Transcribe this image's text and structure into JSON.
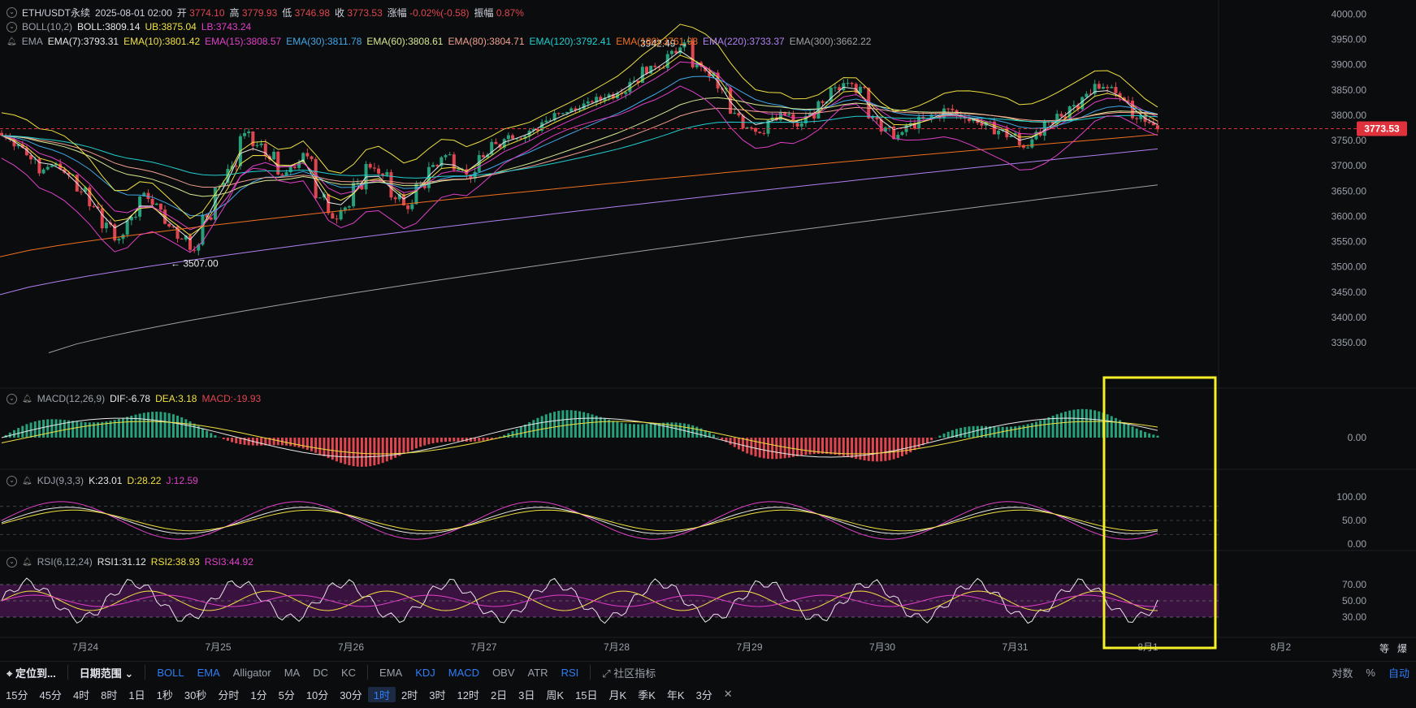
{
  "header": {
    "symbol": "ETH/USDT永续",
    "datetime": "2025-08-01 02:00",
    "open_label": "开",
    "open": "3774.10",
    "high_label": "高",
    "high": "3779.93",
    "low_label": "低",
    "low": "3746.98",
    "close_label": "收",
    "close": "3773.53",
    "change_label": "涨幅",
    "change": "-0.02%(-0.58)",
    "amp_label": "振幅",
    "amp": "0.87%"
  },
  "boll_legend": {
    "name": "BOLL(10,2)",
    "mid": "BOLL:3809.14",
    "ub": "UB:3875.04",
    "lb": "LB:3743.24"
  },
  "ema_legend": {
    "name": "EMA",
    "items": [
      {
        "text": "EMA(7):3793.31",
        "color": "#e8e8e8"
      },
      {
        "text": "EMA(10):3801.42",
        "color": "#f0e040"
      },
      {
        "text": "EMA(15):3808.57",
        "color": "#e040c8"
      },
      {
        "text": "EMA(30):3811.78",
        "color": "#40a8e8"
      },
      {
        "text": "EMA(60):3808.61",
        "color": "#d8e890"
      },
      {
        "text": "EMA(80):3804.71",
        "color": "#f0a090"
      },
      {
        "text": "EMA(120):3792.41",
        "color": "#20d0d0"
      },
      {
        "text": "EMA(180):3761.98",
        "color": "#f07020"
      },
      {
        "text": "EMA(220):3733.37",
        "color": "#b080f0"
      },
      {
        "text": "EMA(300):3662.22",
        "color": "#a0a0a0"
      }
    ]
  },
  "macd_legend": {
    "name": "MACD(12,26,9)",
    "dif": "DIF:-6.78",
    "dea": "DEA:3.18",
    "macd": "MACD:-19.93"
  },
  "kdj_legend": {
    "name": "KDJ(9,3,3)",
    "k": "K:23.01",
    "d": "D:28.22",
    "j": "J:12.59"
  },
  "rsi_legend": {
    "name": "RSI(6,12,24)",
    "r1": "RSI1:31.12",
    "r2": "RSI2:38.93",
    "r3": "RSI3:44.92"
  },
  "colors": {
    "up": "#26a17b",
    "down": "#e0464f",
    "bg": "#0b0c0e",
    "highlight": "#f5f028",
    "price_tag": "#e0323c"
  },
  "chart_data": {
    "type": "candlestick",
    "price_axis": {
      "ticks": [
        4000,
        3950,
        3900,
        3850,
        3800,
        3750,
        3700,
        3650,
        3600,
        3550,
        3500,
        3450,
        3400,
        3350
      ],
      "labels": [
        "4000.00",
        "3950.00",
        "3900.00",
        "3850.00",
        "3800.00",
        "3750.00",
        "3700.00",
        "3650.00",
        "3600.00",
        "3550.00",
        "3500.00",
        "3450.00",
        "3400.00",
        "3350.00"
      ],
      "ylim": [
        3318,
        4012
      ]
    },
    "last_price": {
      "value": 3773.53,
      "label": "3773.53"
    },
    "annotations": [
      {
        "text": "3942.49 →",
        "price": 3942.49,
        "x_date": "7月28 ~17:00"
      },
      {
        "text": "← 3507.00",
        "price": 3507.0,
        "x_date": "7月24 ~18:00"
      }
    ],
    "x_axis": {
      "labels": [
        "7月24",
        "7月25",
        "7月26",
        "7月27",
        "7月28",
        "7月29",
        "7月30",
        "7月31",
        "8月1",
        "8月2"
      ]
    },
    "key_closes": {
      "dates_hourly_from": "7月23 ~13:00",
      "approx_closes": [
        3760,
        3740,
        3720,
        3690,
        3700,
        3680,
        3650,
        3620,
        3580,
        3560,
        3600,
        3640,
        3620,
        3580,
        3560,
        3540,
        3600,
        3660,
        3700,
        3760,
        3740,
        3720,
        3680,
        3700,
        3720,
        3640,
        3600,
        3620,
        3660,
        3700,
        3680,
        3640,
        3620,
        3660,
        3700,
        3720,
        3700,
        3680,
        3720,
        3740,
        3760,
        3760,
        3770,
        3790,
        3800,
        3810,
        3820,
        3830,
        3840,
        3850,
        3870,
        3890,
        3900,
        3920,
        3940,
        3900,
        3880,
        3850,
        3800,
        3780,
        3770,
        3790,
        3800,
        3780,
        3800,
        3820,
        3850,
        3870,
        3850,
        3800,
        3770,
        3760,
        3780,
        3790,
        3800,
        3810,
        3800,
        3790,
        3780,
        3770,
        3760,
        3740,
        3760,
        3780,
        3800,
        3820,
        3840,
        3860,
        3850,
        3830,
        3800,
        3780,
        3773
      ]
    },
    "macd_axis": {
      "labels": [
        "0.00"
      ]
    },
    "kdj_axis": {
      "labels": [
        "100.00",
        "50.00",
        "0.00"
      ]
    },
    "rsi_axis": {
      "labels": [
        "70.00",
        "50.00",
        "30.00"
      ]
    }
  },
  "right_bottom": {
    "zoom": "等",
    "scale_icon": "爆"
  },
  "toolbar": {
    "locate": "定位到...",
    "date_range": "日期范围",
    "indicators_main": [
      "BOLL",
      "EMA",
      "Alligator",
      "MA",
      "DC",
      "KC"
    ],
    "indicators_sub": [
      "EMA",
      "KDJ",
      "MACD",
      "OBV",
      "ATR",
      "RSI"
    ],
    "community": "社区指标",
    "right": [
      "对数",
      "%",
      "自动"
    ]
  },
  "periods": [
    "15分",
    "45分",
    "4时",
    "8时",
    "1日",
    "1秒",
    "30秒",
    "分时",
    "1分",
    "5分",
    "10分",
    "30分",
    "1时",
    "2时",
    "3时",
    "12时",
    "2日",
    "3日",
    "周K",
    "15日",
    "月K",
    "季K",
    "年K",
    "3分"
  ],
  "active_period": "1时",
  "close_x": "✕"
}
